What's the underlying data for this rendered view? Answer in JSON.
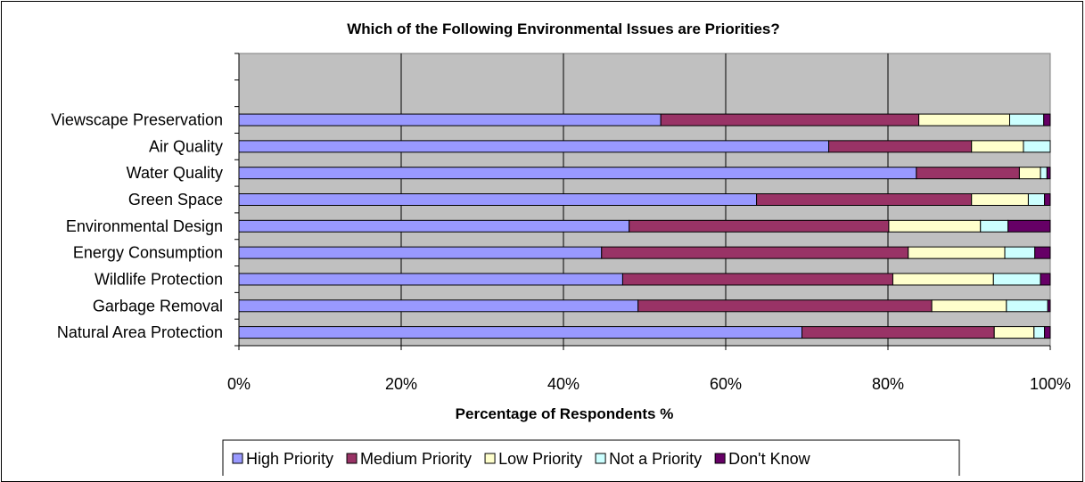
{
  "chart_data": {
    "type": "bar",
    "orientation": "horizontal",
    "stacked": true,
    "percent_stacked": true,
    "title": "Which of the Following Environmental Issues are Priorities?",
    "xlabel": "Percentage of Respondents %",
    "ylabel": "",
    "xlim": [
      0,
      100
    ],
    "x_ticks": [
      "0%",
      "20%",
      "40%",
      "60%",
      "80%",
      "100%"
    ],
    "categories": [
      "Viewscape Preservation",
      "Air Quality",
      "Water Quality",
      "Green Space",
      "Environmental Design",
      "Energy Consumption",
      "Wildlife Protection",
      "Garbage Removal",
      "Natural Area Protection"
    ],
    "series": [
      {
        "name": "High Priority",
        "color": "#9999ff",
        "values": [
          52,
          72.7,
          83.5,
          63.8,
          48.1,
          44.7,
          47.3,
          49.2,
          69.4
        ]
      },
      {
        "name": "Medium Priority",
        "color": "#993366",
        "values": [
          31.8,
          17.6,
          12.7,
          26.5,
          32,
          37.8,
          33.3,
          36.2,
          23.7
        ]
      },
      {
        "name": "Low Priority",
        "color": "#ffffcc",
        "values": [
          11.2,
          6.4,
          2.6,
          7,
          11.3,
          11.9,
          12.4,
          9.2,
          4.9
        ]
      },
      {
        "name": "Not a Priority",
        "color": "#ccffff",
        "values": [
          4.2,
          3.3,
          0.8,
          2,
          3.4,
          3.7,
          5.8,
          5.1,
          1.3
        ]
      },
      {
        "name": "Don't Know",
        "color": "#660066",
        "values": [
          0.8,
          0,
          0.4,
          0.7,
          5.2,
          1.9,
          1.2,
          0.3,
          0.7
        ]
      }
    ],
    "grid": true,
    "plot_background": "#c0c0c0",
    "legend_position": "bottom"
  }
}
